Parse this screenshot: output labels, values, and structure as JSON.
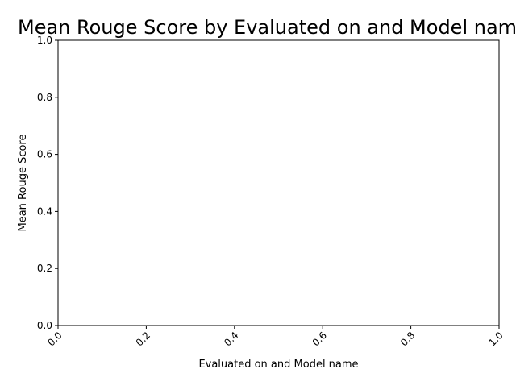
{
  "chart_data": {
    "type": "bar",
    "title": "Mean Rouge Score by Evaluated on and Model name",
    "xlabel": "Evaluated on and Model name",
    "ylabel": "Mean Rouge Score",
    "categories": [],
    "values": [],
    "xlim": [
      0.0,
      1.0
    ],
    "ylim": [
      0.0,
      1.0
    ],
    "x_ticks": [
      "0.0",
      "0.2",
      "0.4",
      "0.6",
      "0.8",
      "1.0"
    ],
    "y_ticks": [
      "0.0",
      "0.2",
      "0.4",
      "0.6",
      "0.8",
      "1.0"
    ],
    "x_tick_rotation": 45,
    "grid": false,
    "legend": "none"
  }
}
